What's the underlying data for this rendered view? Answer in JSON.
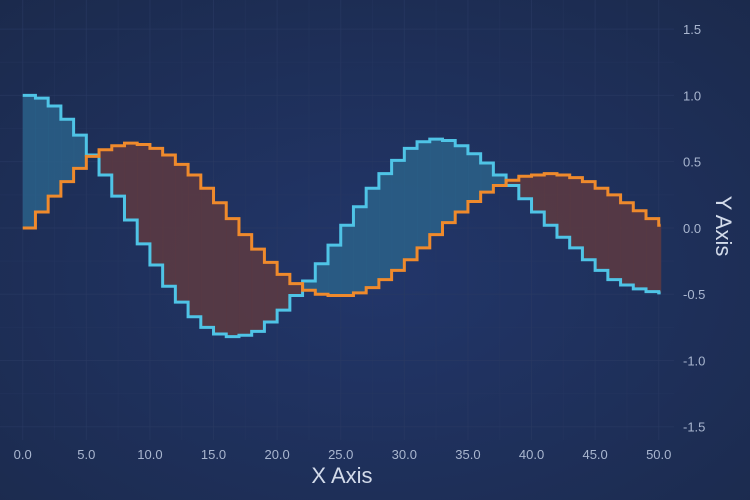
{
  "chart_data": {
    "type": "line",
    "style": "step-band",
    "xlabel": "X Axis",
    "ylabel": "Y Axis",
    "xlim": [
      -1,
      51.2
    ],
    "ylim": [
      -1.6,
      1.72
    ],
    "xticks": [
      "0.0",
      "5.0",
      "10.0",
      "15.0",
      "20.0",
      "25.0",
      "30.0",
      "35.0",
      "40.0",
      "45.0",
      "50.0"
    ],
    "yticks": [
      "1.5",
      "1.0",
      "0.5",
      "0.0",
      "-0.5",
      "-1.0",
      "-1.5"
    ],
    "y_axis_position": "right",
    "grid": true,
    "legend": "none",
    "colors": {
      "background": "#1c2b4f",
      "series_1": "#ef8a2c",
      "series_2": "#4fc4e6",
      "fill_series_1_above": "#5a3a42",
      "fill_series_2_above": "#2a5e86",
      "grid": "#2a3a63"
    },
    "x": [
      0,
      1,
      2,
      3,
      4,
      5,
      6,
      7,
      8,
      9,
      10,
      11,
      12,
      13,
      14,
      15,
      16,
      17,
      18,
      19,
      20,
      21,
      22,
      23,
      24,
      25,
      26,
      27,
      28,
      29,
      30,
      31,
      32,
      33,
      34,
      35,
      36,
      37,
      38,
      39,
      40,
      41,
      42,
      43,
      44,
      45,
      46,
      47,
      48,
      49,
      50
    ],
    "series": [
      {
        "values": [
          0.0,
          0.12,
          0.24,
          0.35,
          0.45,
          0.54,
          0.59,
          0.62,
          0.64,
          0.63,
          0.6,
          0.55,
          0.48,
          0.4,
          0.3,
          0.19,
          0.07,
          -0.05,
          -0.16,
          -0.26,
          -0.35,
          -0.42,
          -0.47,
          -0.5,
          -0.51,
          -0.51,
          -0.49,
          -0.45,
          -0.39,
          -0.32,
          -0.24,
          -0.15,
          -0.05,
          0.04,
          0.12,
          0.2,
          0.27,
          0.32,
          0.36,
          0.39,
          0.4,
          0.41,
          0.4,
          0.38,
          0.35,
          0.3,
          0.25,
          0.19,
          0.13,
          0.07,
          0.02
        ]
      },
      {
        "values": [
          1.0,
          0.98,
          0.92,
          0.82,
          0.7,
          0.55,
          0.4,
          0.24,
          0.06,
          -0.12,
          -0.28,
          -0.44,
          -0.56,
          -0.67,
          -0.75,
          -0.8,
          -0.82,
          -0.81,
          -0.78,
          -0.71,
          -0.62,
          -0.51,
          -0.4,
          -0.27,
          -0.13,
          0.02,
          0.16,
          0.3,
          0.41,
          0.51,
          0.6,
          0.65,
          0.67,
          0.66,
          0.62,
          0.56,
          0.49,
          0.4,
          0.32,
          0.22,
          0.12,
          0.02,
          -0.07,
          -0.15,
          -0.24,
          -0.32,
          -0.39,
          -0.43,
          -0.46,
          -0.48,
          -0.49
        ]
      }
    ]
  }
}
